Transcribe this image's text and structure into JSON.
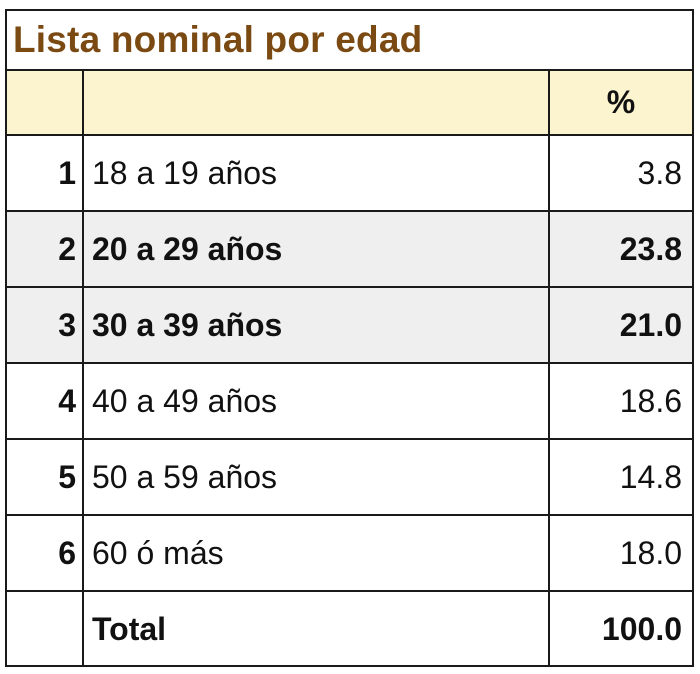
{
  "chart_data": {
    "type": "table",
    "title": "Lista nominal por edad",
    "columns": [
      "",
      "",
      "%"
    ],
    "rows": [
      {
        "num": "1",
        "label": "18 a 19 años",
        "value": "3.8",
        "highlight": false
      },
      {
        "num": "2",
        "label": "20 a 29 años",
        "value": "23.8",
        "highlight": true
      },
      {
        "num": "3",
        "label": "30 a 39 años",
        "value": "21.0",
        "highlight": true
      },
      {
        "num": "4",
        "label": "40 a 49 años",
        "value": "18.6",
        "highlight": false
      },
      {
        "num": "5",
        "label": "50 a 59 años",
        "value": "14.8",
        "highlight": false
      },
      {
        "num": "6",
        "label": "60 ó más",
        "value": "18.0",
        "highlight": false
      }
    ],
    "total": {
      "num": "",
      "label": "Total",
      "value": "100.0"
    },
    "colors": {
      "title": "#7b4a12",
      "header_bg": "#fcf3cf",
      "highlight_bg": "#efefef"
    }
  }
}
